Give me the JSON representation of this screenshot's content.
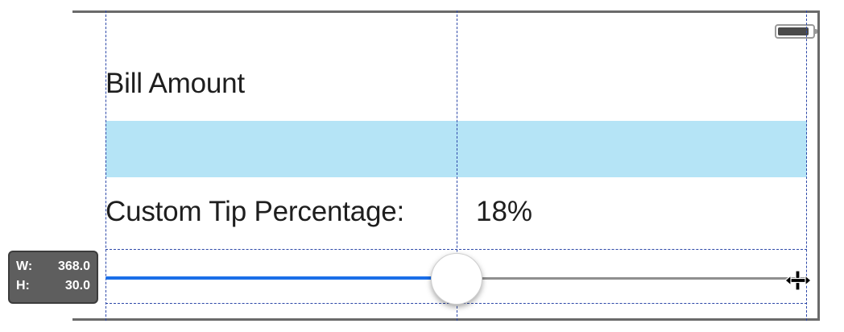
{
  "view": {
    "bill_label": "Bill Amount",
    "bill_field_value": "",
    "tip_label": "Custom Tip Percentage:",
    "tip_value": "18%",
    "field_color": "#b5e4f6"
  },
  "slider": {
    "value_fraction": 0.5,
    "min_track_color": "#1a6ee8",
    "max_track_color": "#8f8f8f"
  },
  "size_badge": {
    "w_label": "W:",
    "w_value": "368.0",
    "h_label": "H:",
    "h_value": "30.0"
  },
  "status_bar": {
    "icon": "battery-icon"
  },
  "cursor": {
    "icon": "move-cursor-icon"
  },
  "guides": {
    "color": "#2d48a8"
  }
}
